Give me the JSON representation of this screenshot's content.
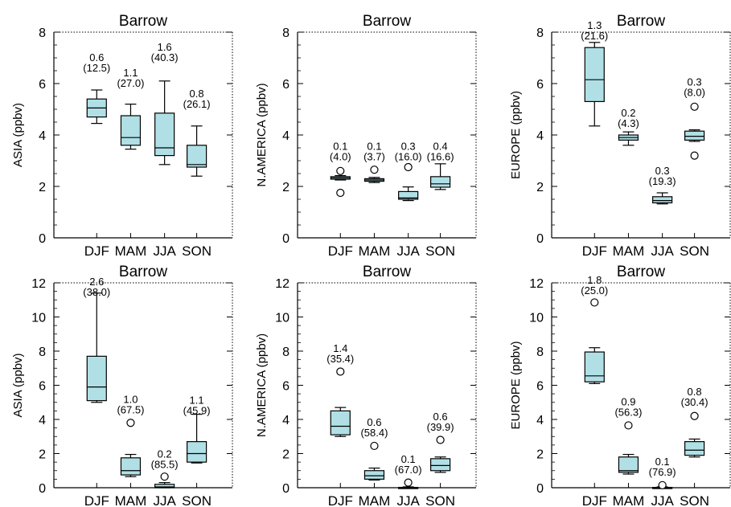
{
  "figure": {
    "box_fill": "#b0e0e6",
    "line_color": "#000000"
  },
  "chart_data": [
    {
      "type": "box",
      "title": "Barrow",
      "ylabel": "ASIA (ppbv)",
      "ylim": [
        0,
        8
      ],
      "yticks": [
        0,
        2,
        4,
        6,
        8
      ],
      "categories": [
        "DJF",
        "MAM",
        "JJA",
        "SON"
      ],
      "boxes": [
        {
          "whislo": 4.45,
          "q1": 4.7,
          "med": 5.05,
          "q3": 5.4,
          "whishi": 5.75,
          "fliers": []
        },
        {
          "whislo": 3.45,
          "q1": 3.6,
          "med": 3.9,
          "q3": 4.75,
          "whishi": 5.2,
          "fliers": []
        },
        {
          "whislo": 2.85,
          "q1": 3.2,
          "med": 3.5,
          "q3": 4.85,
          "whishi": 6.1,
          "fliers": []
        },
        {
          "whislo": 2.4,
          "q1": 2.75,
          "med": 2.85,
          "q3": 3.6,
          "whishi": 4.35,
          "fliers": []
        }
      ],
      "annotations": [
        {
          "line1": "0.6",
          "line2": "(12.5)",
          "y": 6.5
        },
        {
          "line1": "1.1",
          "line2": "(27.0)",
          "y": 5.9
        },
        {
          "line1": "1.6",
          "line2": "(40.3)",
          "y": 6.9
        },
        {
          "line1": "0.8",
          "line2": "(26.1)",
          "y": 5.1
        }
      ]
    },
    {
      "type": "box",
      "title": "Barrow",
      "ylabel": "N.AMERICA (ppbv)",
      "ylim": [
        0,
        8
      ],
      "yticks": [
        0,
        2,
        4,
        6,
        8
      ],
      "categories": [
        "DJF",
        "MAM",
        "JJA",
        "SON"
      ],
      "boxes": [
        {
          "whislo": 2.25,
          "q1": 2.28,
          "med": 2.33,
          "q3": 2.38,
          "whishi": 2.42,
          "fliers": [
            2.6,
            1.75
          ]
        },
        {
          "whislo": 2.15,
          "q1": 2.2,
          "med": 2.25,
          "q3": 2.3,
          "whishi": 2.35,
          "fliers": [
            2.65
          ]
        },
        {
          "whislo": 1.45,
          "q1": 1.5,
          "med": 1.55,
          "q3": 1.8,
          "whishi": 1.98,
          "fliers": [
            2.75
          ]
        },
        {
          "whislo": 1.88,
          "q1": 1.97,
          "med": 2.1,
          "q3": 2.38,
          "whishi": 2.88,
          "fliers": []
        }
      ],
      "annotations": [
        {
          "line1": "0.1",
          "line2": "(4.0)",
          "y": 3.05
        },
        {
          "line1": "0.1",
          "line2": "(3.7)",
          "y": 3.05
        },
        {
          "line1": "0.3",
          "line2": "(16.0)",
          "y": 3.05
        },
        {
          "line1": "0.4",
          "line2": "(16.6)",
          "y": 3.05
        }
      ]
    },
    {
      "type": "box",
      "title": "Barrow",
      "ylabel": "EUROPE (ppbv)",
      "ylim": [
        0,
        8
      ],
      "yticks": [
        0,
        2,
        4,
        6,
        8
      ],
      "categories": [
        "DJF",
        "MAM",
        "JJA",
        "SON"
      ],
      "boxes": [
        {
          "whislo": 4.35,
          "q1": 5.3,
          "med": 6.15,
          "q3": 7.4,
          "whishi": 7.6,
          "fliers": []
        },
        {
          "whislo": 3.6,
          "q1": 3.8,
          "med": 3.9,
          "q3": 4.0,
          "whishi": 4.12,
          "fliers": []
        },
        {
          "whislo": 1.32,
          "q1": 1.36,
          "med": 1.45,
          "q3": 1.6,
          "whishi": 1.75,
          "fliers": []
        },
        {
          "whislo": 3.75,
          "q1": 3.8,
          "med": 3.95,
          "q3": 4.15,
          "whishi": 4.2,
          "fliers": [
            5.1,
            3.2
          ]
        }
      ],
      "annotations": [
        {
          "line1": "1.3",
          "line2": "(21.6)",
          "y": 7.75
        },
        {
          "line1": "0.2",
          "line2": "(4.3)",
          "y": 4.35
        },
        {
          "line1": "0.3",
          "line2": "(19.3)",
          "y": 2.1
        },
        {
          "line1": "0.3",
          "line2": "(8.0)",
          "y": 5.55
        }
      ]
    },
    {
      "type": "box",
      "title": "Barrow",
      "ylabel": "ASIA (ppbv)",
      "ylim": [
        0,
        12
      ],
      "yticks": [
        0,
        2,
        4,
        6,
        8,
        10,
        12
      ],
      "categories": [
        "DJF",
        "MAM",
        "JJA",
        "SON"
      ],
      "boxes": [
        {
          "whislo": 5.0,
          "q1": 5.1,
          "med": 5.9,
          "q3": 7.7,
          "whishi": 11.4,
          "fliers": []
        },
        {
          "whislo": 0.65,
          "q1": 0.75,
          "med": 1.0,
          "q3": 1.75,
          "whishi": 1.95,
          "fliers": [
            3.8
          ]
        },
        {
          "whislo": -0.05,
          "q1": -0.02,
          "med": 0.05,
          "q3": 0.2,
          "whishi": 0.3,
          "fliers": [
            0.65
          ]
        },
        {
          "whislo": 1.45,
          "q1": 1.5,
          "med": 2.0,
          "q3": 2.7,
          "whishi": 4.3,
          "fliers": []
        }
      ],
      "annotations": [
        {
          "line1": "2.6",
          "line2": "(38.0)",
          "y": 11.3
        },
        {
          "line1": "1.0",
          "line2": "(67.5)",
          "y": 4.4
        },
        {
          "line1": "0.2",
          "line2": "(85.5)",
          "y": 1.2
        },
        {
          "line1": "1.1",
          "line2": "(45.9)",
          "y": 4.35
        }
      ]
    },
    {
      "type": "box",
      "title": "Barrow",
      "ylabel": "N.AMERICA (ppbv)",
      "ylim": [
        0,
        12
      ],
      "yticks": [
        0,
        2,
        4,
        6,
        8,
        10,
        12
      ],
      "categories": [
        "DJF",
        "MAM",
        "JJA",
        "SON"
      ],
      "boxes": [
        {
          "whislo": 3.0,
          "q1": 3.1,
          "med": 3.6,
          "q3": 4.5,
          "whishi": 4.7,
          "fliers": [
            6.8
          ]
        },
        {
          "whislo": 0.45,
          "q1": 0.5,
          "med": 0.7,
          "q3": 1.0,
          "whishi": 1.15,
          "fliers": [
            2.45
          ]
        },
        {
          "whislo": -0.12,
          "q1": -0.08,
          "med": -0.02,
          "q3": 0.02,
          "whishi": 0.05,
          "fliers": [
            0.3
          ]
        },
        {
          "whislo": 0.9,
          "q1": 1.0,
          "med": 1.3,
          "q3": 1.7,
          "whishi": 1.8,
          "fliers": [
            2.8
          ]
        }
      ],
      "annotations": [
        {
          "line1": "1.4",
          "line2": "(35.4)",
          "y": 7.4
        },
        {
          "line1": "0.6",
          "line2": "(58.4)",
          "y": 3.05
        },
        {
          "line1": "0.1",
          "line2": "(67.0)",
          "y": 0.9
        },
        {
          "line1": "0.6",
          "line2": "(39.9)",
          "y": 3.4
        }
      ]
    },
    {
      "type": "box",
      "title": "Barrow",
      "ylabel": "EUROPE (ppbv)",
      "ylim": [
        0,
        12
      ],
      "yticks": [
        0,
        2,
        4,
        6,
        8,
        10,
        12
      ],
      "categories": [
        "DJF",
        "MAM",
        "JJA",
        "SON"
      ],
      "boxes": [
        {
          "whislo": 6.1,
          "q1": 6.2,
          "med": 6.55,
          "q3": 7.95,
          "whishi": 8.2,
          "fliers": [
            10.85
          ]
        },
        {
          "whislo": 0.8,
          "q1": 0.9,
          "med": 1.0,
          "q3": 1.8,
          "whishi": 1.95,
          "fliers": [
            3.65
          ]
        },
        {
          "whislo": -0.1,
          "q1": -0.06,
          "med": -0.02,
          "q3": 0.02,
          "whishi": 0.05,
          "fliers": [
            0.15
          ]
        },
        {
          "whislo": 1.8,
          "q1": 1.9,
          "med": 2.2,
          "q3": 2.7,
          "whishi": 2.85,
          "fliers": [
            4.2
          ]
        }
      ],
      "annotations": [
        {
          "line1": "1.8",
          "line2": "(25.0)",
          "y": 11.4
        },
        {
          "line1": "0.9",
          "line2": "(56.3)",
          "y": 4.25
        },
        {
          "line1": "0.1",
          "line2": "(76.9)",
          "y": 0.75
        },
        {
          "line1": "0.8",
          "line2": "(30.4)",
          "y": 4.85
        }
      ]
    }
  ]
}
